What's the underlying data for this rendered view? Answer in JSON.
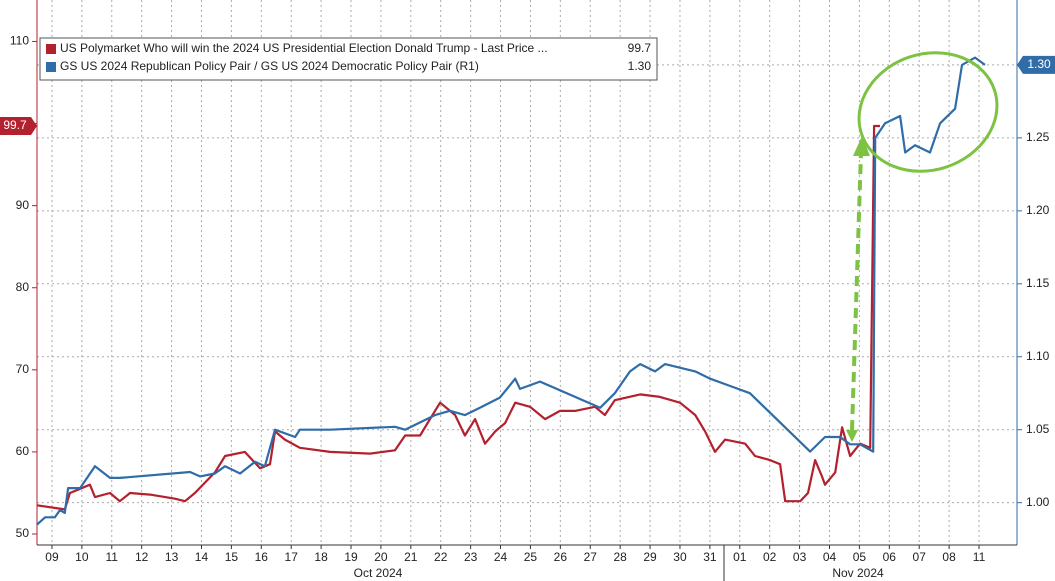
{
  "chart_data": {
    "type": "line",
    "xlim": [
      -0.5,
      32.27
    ],
    "xticks": [
      {
        "value": 0,
        "label": "09"
      },
      {
        "value": 1,
        "label": "10"
      },
      {
        "value": 2,
        "label": "11"
      },
      {
        "value": 3,
        "label": "12"
      },
      {
        "value": 4,
        "label": "13"
      },
      {
        "value": 5,
        "label": "14"
      },
      {
        "value": 6,
        "label": "15"
      },
      {
        "value": 7,
        "label": "16"
      },
      {
        "value": 8,
        "label": "17"
      },
      {
        "value": 9,
        "label": "18"
      },
      {
        "value": 10,
        "label": "19"
      },
      {
        "value": 11,
        "label": "20"
      },
      {
        "value": 12,
        "label": "21"
      },
      {
        "value": 13,
        "label": "22"
      },
      {
        "value": 14,
        "label": "23"
      },
      {
        "value": 15,
        "label": "24"
      },
      {
        "value": 16,
        "label": "25"
      },
      {
        "value": 17,
        "label": "26"
      },
      {
        "value": 18,
        "label": "27"
      },
      {
        "value": 19,
        "label": "28"
      },
      {
        "value": 20,
        "label": "29"
      },
      {
        "value": 21,
        "label": "30"
      },
      {
        "value": 22,
        "label": "31"
      },
      {
        "value": 23,
        "label": "01"
      },
      {
        "value": 24,
        "label": "02"
      },
      {
        "value": 25,
        "label": "03"
      },
      {
        "value": 26,
        "label": "04"
      },
      {
        "value": 27,
        "label": "05"
      },
      {
        "value": 28,
        "label": "06"
      },
      {
        "value": 29,
        "label": "07"
      },
      {
        "value": 30,
        "label": "08"
      },
      {
        "value": 31,
        "label": "11"
      }
    ],
    "x_groups": [
      "Oct 2024",
      "Nov 2024"
    ],
    "ylim": [
      48.66,
      115.05
    ],
    "yticks": [
      50,
      60,
      70,
      80,
      90,
      100,
      110
    ],
    "y2lim": [
      0.971,
      1.3445
    ],
    "y2ticks": [
      {
        "value": 1.0,
        "label": "1.00"
      },
      {
        "value": 1.05,
        "label": "1.05"
      },
      {
        "value": 1.1,
        "label": "1.10"
      },
      {
        "value": 1.15,
        "label": "1.15"
      },
      {
        "value": 1.2,
        "label": "1.20"
      },
      {
        "value": 1.25,
        "label": "1.25"
      },
      {
        "value": 1.3,
        "label": "1.30"
      }
    ],
    "grid": true,
    "series": [
      {
        "name": "US Polymarket Who will win the 2024 US Presidential Election Donald Trump - Last Price ...",
        "color": "#b3202e",
        "axis": "y",
        "last": 99.7,
        "x": [
          -0.5,
          0.43,
          0.6,
          0.94,
          1.27,
          1.44,
          1.94,
          2.27,
          2.61,
          3.28,
          4.11,
          4.45,
          4.78,
          5.45,
          5.79,
          6.45,
          6.96,
          7.29,
          7.46,
          7.79,
          8.29,
          9.3,
          10.64,
          11.47,
          11.81,
          12.31,
          12.64,
          12.98,
          13.48,
          13.81,
          14.15,
          14.48,
          14.82,
          15.15,
          15.49,
          15.99,
          16.49,
          16.99,
          17.49,
          18.16,
          18.49,
          18.82,
          19.67,
          20.33,
          21.0,
          21.51,
          21.84,
          22.17,
          22.51,
          23.18,
          23.51,
          24.01,
          24.35,
          24.52,
          25.02,
          25.28,
          25.52,
          25.75,
          25.85,
          26.19,
          26.42,
          26.69,
          27.02,
          27.36,
          27.49,
          27.69
        ],
        "values": [
          53.5,
          53,
          55,
          55.5,
          56,
          54.5,
          55,
          54,
          55,
          54.8,
          54.3,
          54,
          55,
          57.5,
          59.5,
          60,
          58,
          58.5,
          62.5,
          61.5,
          60.5,
          60,
          59.8,
          60.2,
          62,
          62,
          64,
          66,
          64.5,
          62,
          64,
          61,
          62.5,
          63.5,
          66,
          65.5,
          64,
          65,
          65,
          65.5,
          64.5,
          66.3,
          67,
          66.7,
          66,
          64.5,
          62.5,
          60,
          61.5,
          61,
          59.5,
          59,
          58.5,
          54,
          54,
          55,
          59,
          57,
          56,
          57.5,
          63,
          59.5,
          61,
          60.5,
          99.7,
          99.7
        ]
      },
      {
        "name": "GS US 2024 Republican Policy Pair / GS US 2024 Democratic Policy Pair (R1)",
        "color": "#2f6ca8",
        "axis": "y2",
        "last": {
          "value": 1.3,
          "label": "1.30"
        },
        "x": [
          -0.5,
          -0.23,
          0.1,
          0.27,
          0.43,
          0.54,
          0.94,
          1.44,
          1.94,
          2.27,
          4.62,
          4.95,
          5.45,
          5.79,
          6.29,
          6.79,
          7.12,
          7.46,
          8.13,
          8.29,
          9.3,
          11.47,
          11.81,
          12.31,
          12.81,
          13.31,
          13.81,
          14.31,
          14.98,
          15.49,
          15.65,
          16.32,
          18.33,
          18.82,
          19.33,
          19.67,
          20.17,
          20.5,
          21.51,
          22.01,
          22.68,
          23.34,
          25.35,
          25.85,
          26.35,
          26.69,
          27.02,
          27.46,
          27.53,
          27.86,
          28.36,
          28.53,
          28.86,
          29.36,
          29.7,
          30.2,
          30.43,
          30.87,
          31.2
        ],
        "values": [
          0.985,
          0.99,
          0.99,
          0.995,
          0.993,
          1.01,
          1.01,
          1.025,
          1.017,
          1.017,
          1.021,
          1.018,
          1.02,
          1.025,
          1.02,
          1.028,
          1.025,
          1.05,
          1.045,
          1.05,
          1.05,
          1.052,
          1.05,
          1.055,
          1.06,
          1.063,
          1.06,
          1.065,
          1.072,
          1.085,
          1.078,
          1.083,
          1.065,
          1.075,
          1.09,
          1.095,
          1.09,
          1.095,
          1.09,
          1.085,
          1.08,
          1.075,
          1.035,
          1.045,
          1.045,
          1.04,
          1.04,
          1.035,
          1.25,
          1.26,
          1.265,
          1.24,
          1.245,
          1.24,
          1.26,
          1.27,
          1.3,
          1.305,
          1.3
        ]
      }
    ]
  }
}
